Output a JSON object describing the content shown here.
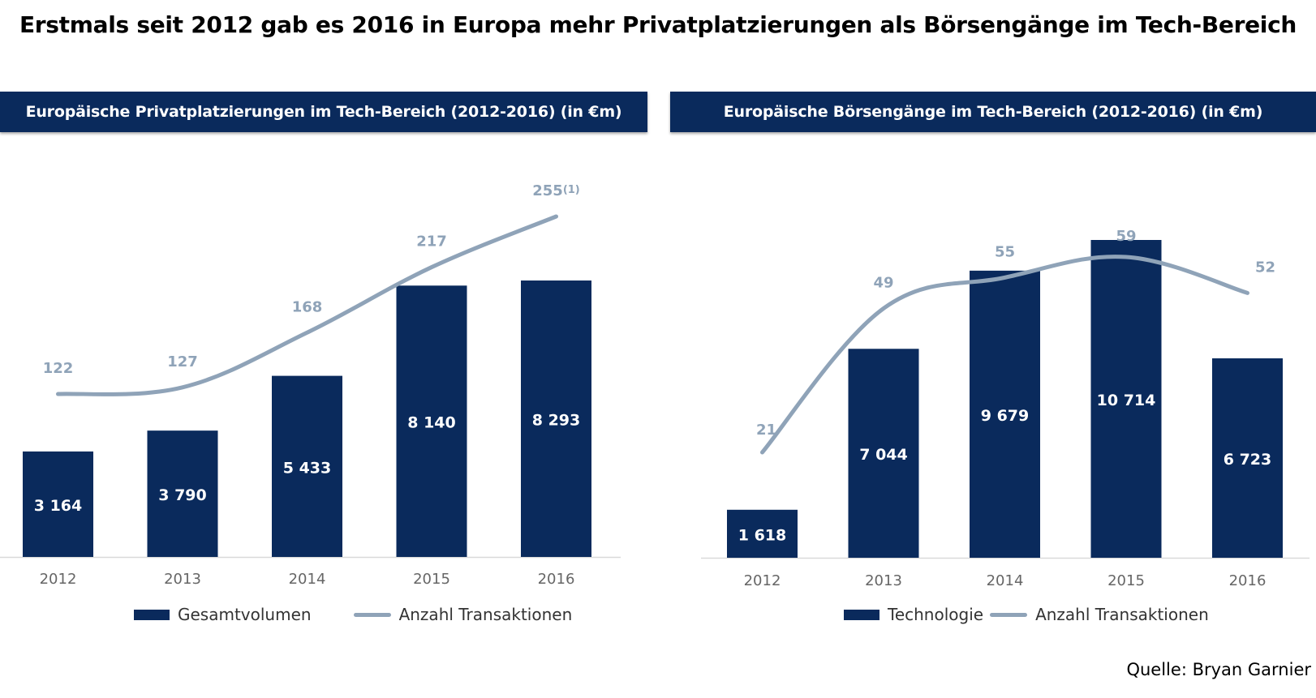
{
  "title": "Erstmals seit 2012 gab es 2016 in Europa mehr Privatplatzierungen als Börsengänge im Tech-Bereich",
  "source": "Quelle: Bryan Garnier",
  "colors": {
    "bar": "#0a2a5c",
    "line": "#8fa3b8",
    "label_line": "#8fa3b8",
    "axis_text": "#666666"
  },
  "chart_data": [
    {
      "type": "bar",
      "title": "Europäische Privatplatzierungen im Tech-Bereich (2012-2016) (in €m)",
      "categories": [
        "2012",
        "2013",
        "2014",
        "2015",
        "2016"
      ],
      "series": [
        {
          "name": "Gesamtvolumen",
          "kind": "bar",
          "values": [
            3164,
            3790,
            5433,
            8140,
            8293
          ],
          "labels": [
            "3 164",
            "3 790",
            "5 433",
            "8 140",
            "8 293"
          ]
        },
        {
          "name": "Anzahl Transaktionen",
          "kind": "line",
          "values": [
            122,
            127,
            168,
            217,
            255
          ],
          "labels": [
            "122",
            "127",
            "168",
            "217",
            "255"
          ],
          "footnotes": [
            "",
            "",
            "",
            "",
            "(1)"
          ]
        }
      ],
      "legend": [
        "Gesamtvolumen",
        "Anzahl Transaktionen"
      ],
      "legend_position": "bottom",
      "grid": false
    },
    {
      "type": "bar",
      "title": "Europäische Börsengänge im Tech-Bereich (2012-2016) (in €m)",
      "categories": [
        "2012",
        "2013",
        "2014",
        "2015",
        "2016"
      ],
      "series": [
        {
          "name": "Technologie",
          "kind": "bar",
          "values": [
            1618,
            7044,
            9679,
            10714,
            6723
          ],
          "labels": [
            "1 618",
            "7 044",
            "9 679",
            "10 714",
            "6 723"
          ]
        },
        {
          "name": "Anzahl Transaktionen",
          "kind": "line",
          "values": [
            21,
            49,
            55,
            59,
            52
          ],
          "labels": [
            "21",
            "49",
            "55",
            "59",
            "52"
          ],
          "footnotes": [
            "",
            "",
            "",
            "",
            ""
          ]
        }
      ],
      "legend": [
        "Technologie",
        "Anzahl Transaktionen"
      ],
      "legend_position": "bottom",
      "grid": false
    }
  ]
}
